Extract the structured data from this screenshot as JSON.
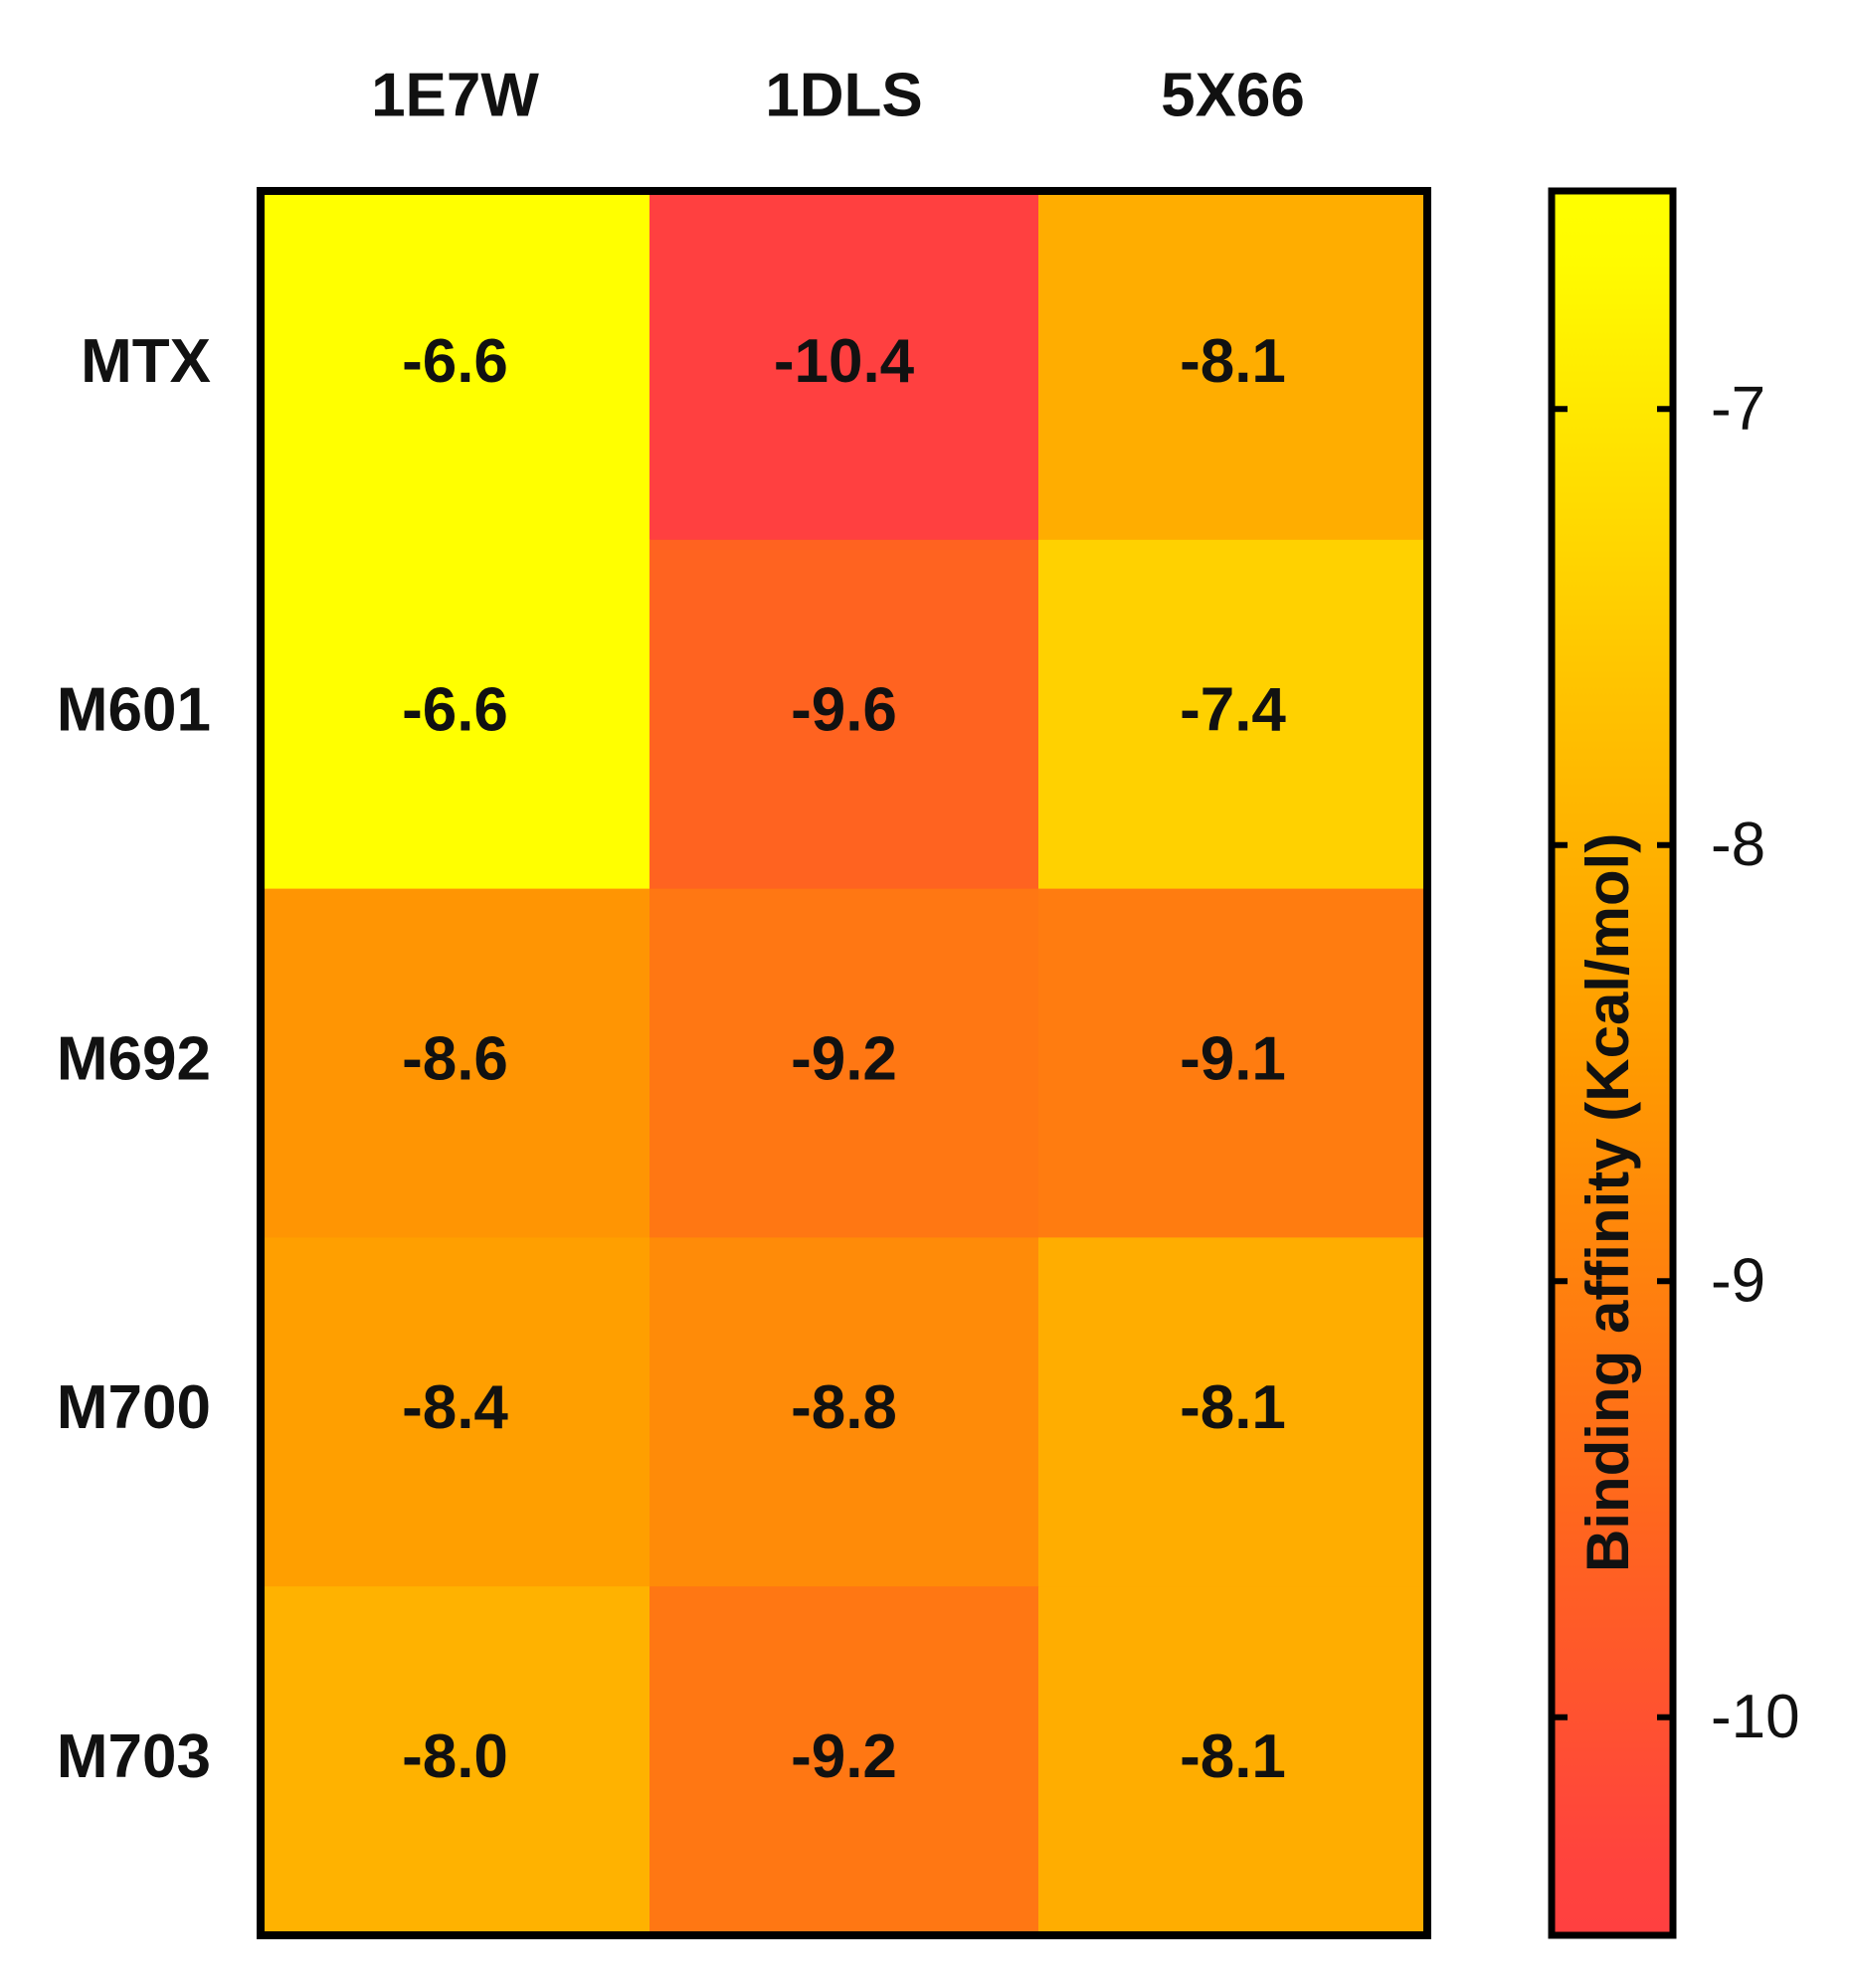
{
  "chart_data": {
    "type": "heatmap",
    "title": "",
    "columns": [
      "1E7W",
      "1DLS",
      "5X66"
    ],
    "rows": [
      "MTX",
      "M601",
      "M692",
      "M700",
      "M703"
    ],
    "values": [
      [
        -6.6,
        -10.4,
        -8.1
      ],
      [
        -6.6,
        -9.6,
        -7.4
      ],
      [
        -8.6,
        -9.2,
        -9.1
      ],
      [
        -8.4,
        -8.8,
        -8.1
      ],
      [
        -8.0,
        -9.2,
        -8.1
      ]
    ],
    "value_labels": [
      [
        "-6.6",
        "-10.4",
        "-8.1"
      ],
      [
        "-6.6",
        "-9.6",
        "-7.4"
      ],
      [
        "-8.6",
        "-9.2",
        "-9.1"
      ],
      [
        "-8.4",
        "-8.8",
        "-8.1"
      ],
      [
        "-8.0",
        "-9.2",
        "-8.1"
      ]
    ],
    "colorbar": {
      "label": "Binding affinity (Kcal/mol)",
      "range": [
        -10.4,
        -6.6
      ],
      "ticks": [
        -7,
        -8,
        -9,
        -10
      ],
      "tick_labels": [
        "-7",
        "-8",
        "-9",
        "-10"
      ],
      "colormap": [
        "#ff4040",
        "#ff6a1a",
        "#ff9a00",
        "#ffc800",
        "#ffff00"
      ],
      "placement": "right"
    }
  }
}
